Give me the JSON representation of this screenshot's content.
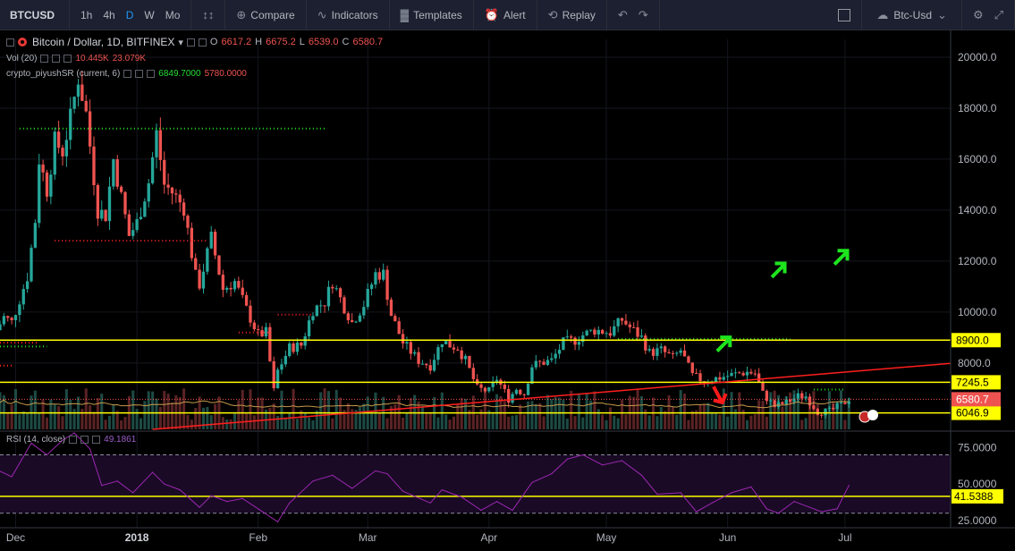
{
  "toolbar": {
    "symbol": "BTCUSD",
    "intervals": [
      "1h",
      "4h",
      "D",
      "W",
      "Mo"
    ],
    "active_interval": "D",
    "compare_label": "Compare",
    "indicators_label": "Indicators",
    "templates_label": "Templates",
    "alert_label": "Alert",
    "replay_label": "Replay",
    "layout_label": "Btc-Usd"
  },
  "legend": {
    "title": "Bitcoin / Dollar, 1D, BITFINEX",
    "open_label": "O",
    "open": "6617.2",
    "high_label": "H",
    "high": "6675.2",
    "low_label": "L",
    "low": "6539.0",
    "close_label": "C",
    "close": "6580.7",
    "vol_name": "Vol (20)",
    "vol_value1": "10.445K",
    "vol_value2": "23.079K",
    "sr_name": "crypto_piyushSR (current, 6)",
    "sr_value1": "6849.7000",
    "sr_value2": "5780.0000",
    "rsi_name": "RSI (14, close)",
    "rsi_value": "49.1861"
  },
  "colors": {
    "up": "#26a69a",
    "down": "#ef5350",
    "horizontal_line": "#ffff00",
    "trendline": "#ff1e1e",
    "rsi_line": "#9c27b0",
    "sr_resistance": "#22e022",
    "sr_support": "#ff2222"
  },
  "chart_data": [
    {
      "type": "candlestick",
      "title": "Bitcoin / Dollar, 1D, BITFINEX",
      "y_scale": "linear",
      "ylim": [
        5400,
        20700
      ],
      "y_ticks": [
        20000,
        18000,
        16000,
        14000,
        12000,
        10000,
        8000
      ],
      "y_tick_labels": [
        "20000.0",
        "18000.0",
        "16000.0",
        "14000.0",
        "12000.0",
        "10000.0",
        "8000.0"
      ],
      "x_labels": [
        "Dec",
        "2018",
        "Feb",
        "Mar",
        "Apr",
        "May",
        "Jun",
        "Jul"
      ],
      "x_label_dates": [
        "2017-12-01",
        "2018-01-01",
        "2018-02-01",
        "2018-03-01",
        "2018-04-01",
        "2018-05-01",
        "2018-06-01",
        "2018-07-01"
      ],
      "x_range": [
        "2017-11-27",
        "2018-07-28"
      ],
      "price_path_close": [
        [
          "2017-11-26",
          9300
        ],
        [
          "2017-11-28",
          9800
        ],
        [
          "2017-11-30",
          9600
        ],
        [
          "2017-12-04",
          11400
        ],
        [
          "2017-12-06",
          13600
        ],
        [
          "2017-12-07",
          16000
        ],
        [
          "2017-12-09",
          14800
        ],
        [
          "2017-12-11",
          16700
        ],
        [
          "2017-12-13",
          16300
        ],
        [
          "2017-12-15",
          17600
        ],
        [
          "2017-12-17",
          19200
        ],
        [
          "2017-12-19",
          17800
        ],
        [
          "2017-12-22",
          14000
        ],
        [
          "2017-12-24",
          13800
        ],
        [
          "2017-12-26",
          16000
        ],
        [
          "2017-12-28",
          14500
        ],
        [
          "2017-12-30",
          13000
        ],
        [
          "2018-01-01",
          13500
        ],
        [
          "2018-01-04",
          15100
        ],
        [
          "2018-01-06",
          17000
        ],
        [
          "2018-01-08",
          15000
        ],
        [
          "2018-01-10",
          14700
        ],
        [
          "2018-01-13",
          14100
        ],
        [
          "2018-01-16",
          11400
        ],
        [
          "2018-01-17",
          11100
        ],
        [
          "2018-01-20",
          12900
        ],
        [
          "2018-01-23",
          10900
        ],
        [
          "2018-01-26",
          11200
        ],
        [
          "2018-01-29",
          10100
        ],
        [
          "2018-02-01",
          9100
        ],
        [
          "2018-02-03",
          9200
        ],
        [
          "2018-02-05",
          6900
        ],
        [
          "2018-02-06",
          7700
        ],
        [
          "2018-02-09",
          8600
        ],
        [
          "2018-02-12",
          8700
        ],
        [
          "2018-02-15",
          10100
        ],
        [
          "2018-02-18",
          10400
        ],
        [
          "2018-02-20",
          11200
        ],
        [
          "2018-02-23",
          10200
        ],
        [
          "2018-02-25",
          9600
        ],
        [
          "2018-02-28",
          10300
        ],
        [
          "2018-03-03",
          11500
        ],
        [
          "2018-03-05",
          11500
        ],
        [
          "2018-03-07",
          9900
        ],
        [
          "2018-03-10",
          8800
        ],
        [
          "2018-03-14",
          8100
        ],
        [
          "2018-03-17",
          7900
        ],
        [
          "2018-03-20",
          8900
        ],
        [
          "2018-03-22",
          8700
        ],
        [
          "2018-03-24",
          8600
        ],
        [
          "2018-03-26",
          8100
        ],
        [
          "2018-03-29",
          7000
        ],
        [
          "2018-04-01",
          6900
        ],
        [
          "2018-04-03",
          7400
        ],
        [
          "2018-04-06",
          6600
        ],
        [
          "2018-04-08",
          7000
        ],
        [
          "2018-04-10",
          6800
        ],
        [
          "2018-04-12",
          7900
        ],
        [
          "2018-04-14",
          8000
        ],
        [
          "2018-04-17",
          8100
        ],
        [
          "2018-04-20",
          8800
        ],
        [
          "2018-04-23",
          8900
        ],
        [
          "2018-04-25",
          9100
        ],
        [
          "2018-04-28",
          9300
        ],
        [
          "2018-05-02",
          9200
        ],
        [
          "2018-05-05",
          9700
        ],
        [
          "2018-05-07",
          9400
        ],
        [
          "2018-05-10",
          9000
        ],
        [
          "2018-05-12",
          8400
        ],
        [
          "2018-05-15",
          8500
        ],
        [
          "2018-05-18",
          8200
        ],
        [
          "2018-05-20",
          8500
        ],
        [
          "2018-05-23",
          7500
        ],
        [
          "2018-05-26",
          7300
        ],
        [
          "2018-05-29",
          7400
        ],
        [
          "2018-06-01",
          7500
        ],
        [
          "2018-06-04",
          7600
        ],
        [
          "2018-06-06",
          7650
        ],
        [
          "2018-06-08",
          7600
        ],
        [
          "2018-06-10",
          6800
        ],
        [
          "2018-06-13",
          6300
        ],
        [
          "2018-06-16",
          6450
        ],
        [
          "2018-06-19",
          6700
        ],
        [
          "2018-06-21",
          6700
        ],
        [
          "2018-06-24",
          6100
        ],
        [
          "2018-06-27",
          6100
        ],
        [
          "2018-06-30",
          6350
        ],
        [
          "2018-07-02",
          6600
        ]
      ],
      "horizontal_levels": [
        {
          "value": 8900.0,
          "label": "8900.0"
        },
        {
          "value": 7245.5,
          "label": "7245.5"
        },
        {
          "value": 6046.9,
          "label": "6046.9"
        }
      ],
      "last_price": {
        "value": 6580.7,
        "label": "6580.7"
      },
      "trendline": [
        [
          "2018-01-05",
          5400
        ],
        [
          "2018-07-28",
          7990
        ]
      ],
      "sr_resistance_levels": [
        {
          "from": "2017-12-02",
          "to": "2018-02-18",
          "value": 17200
        },
        {
          "from": "2017-11-27",
          "to": "2017-12-09",
          "value": 8650
        },
        {
          "from": "2018-05-04",
          "to": "2018-06-17",
          "value": 8950
        },
        {
          "from": "2018-06-23",
          "to": "2018-07-01",
          "value": 6960
        }
      ],
      "sr_support_levels": [
        {
          "from": "2017-12-11",
          "to": "2018-01-19",
          "value": 12800
        },
        {
          "from": "2018-01-27",
          "to": "2018-02-04",
          "value": 9200
        },
        {
          "from": "2018-02-06",
          "to": "2018-02-15",
          "value": 9900
        },
        {
          "from": "2017-11-27",
          "to": "2017-12-07",
          "value": 8800
        },
        {
          "from": "2017-11-27",
          "to": "2017-11-30",
          "value": 7900
        }
      ],
      "annotations": [
        {
          "kind": "arrow-up",
          "color": "green",
          "date": "2018-05-31",
          "value": 8800
        },
        {
          "kind": "arrow-up",
          "color": "green",
          "date": "2018-06-14",
          "value": 11700
        },
        {
          "kind": "arrow-up",
          "color": "green",
          "date": "2018-06-30",
          "value": 12200
        },
        {
          "kind": "arrow-down",
          "color": "red",
          "date": "2018-05-30",
          "value": 6700
        }
      ]
    },
    {
      "type": "line",
      "name": "RSI (14, close)",
      "ylim": [
        20,
        85
      ],
      "y_ticks": [
        75,
        50,
        25
      ],
      "y_tick_labels": [
        "75.0000",
        "50.0000",
        "25.0000"
      ],
      "overbought": 70,
      "oversold": 30,
      "level_line": {
        "value": 41.5388,
        "label": "41.5388"
      },
      "points": [
        [
          "2017-11-26",
          60
        ],
        [
          "2017-11-30",
          55
        ],
        [
          "2017-12-05",
          78
        ],
        [
          "2017-12-09",
          70
        ],
        [
          "2017-12-13",
          80
        ],
        [
          "2017-12-16",
          85
        ],
        [
          "2017-12-20",
          74
        ],
        [
          "2017-12-23",
          49
        ],
        [
          "2017-12-27",
          52
        ],
        [
          "2017-12-31",
          44
        ],
        [
          "2018-01-05",
          58
        ],
        [
          "2018-01-08",
          50
        ],
        [
          "2018-01-12",
          46
        ],
        [
          "2018-01-17",
          34
        ],
        [
          "2018-01-20",
          42
        ],
        [
          "2018-01-24",
          38
        ],
        [
          "2018-01-28",
          40
        ],
        [
          "2018-02-01",
          33
        ],
        [
          "2018-02-06",
          24
        ],
        [
          "2018-02-09",
          37
        ],
        [
          "2018-02-15",
          52
        ],
        [
          "2018-02-20",
          56
        ],
        [
          "2018-02-25",
          47
        ],
        [
          "2018-03-03",
          59
        ],
        [
          "2018-03-06",
          57
        ],
        [
          "2018-03-10",
          45
        ],
        [
          "2018-03-17",
          37
        ],
        [
          "2018-03-20",
          46
        ],
        [
          "2018-03-25",
          41
        ],
        [
          "2018-03-30",
          32
        ],
        [
          "2018-04-03",
          38
        ],
        [
          "2018-04-07",
          32
        ],
        [
          "2018-04-12",
          51
        ],
        [
          "2018-04-17",
          57
        ],
        [
          "2018-04-21",
          67
        ],
        [
          "2018-04-25",
          70
        ],
        [
          "2018-04-30",
          63
        ],
        [
          "2018-05-05",
          66
        ],
        [
          "2018-05-10",
          56
        ],
        [
          "2018-05-14",
          43
        ],
        [
          "2018-05-20",
          44
        ],
        [
          "2018-05-24",
          31
        ],
        [
          "2018-05-28",
          37
        ],
        [
          "2018-06-02",
          44
        ],
        [
          "2018-06-07",
          48
        ],
        [
          "2018-06-11",
          33
        ],
        [
          "2018-06-14",
          30
        ],
        [
          "2018-06-18",
          38
        ],
        [
          "2018-06-22",
          34
        ],
        [
          "2018-06-25",
          31
        ],
        [
          "2018-06-29",
          33
        ],
        [
          "2018-07-02",
          49
        ]
      ]
    }
  ]
}
